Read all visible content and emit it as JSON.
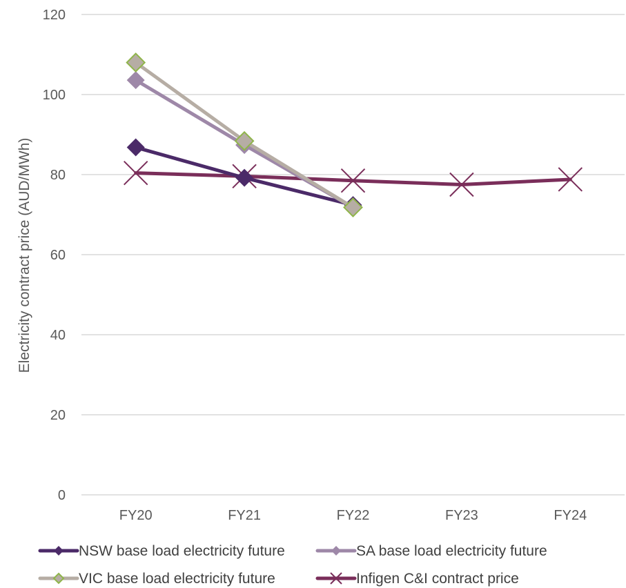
{
  "chart_data": {
    "type": "line",
    "title": "",
    "xlabel": "",
    "ylabel": "Electricity contract price (AUD/MWh)",
    "categories": [
      "FY20",
      "FY21",
      "FY22",
      "FY23",
      "FY24"
    ],
    "ylim": [
      0,
      120
    ],
    "yticks": [
      0,
      20,
      40,
      60,
      80,
      100,
      120
    ],
    "grid": true,
    "legend_position": "bottom",
    "series": [
      {
        "name": "NSW base load electricity future",
        "values": [
          86.8,
          79.2,
          72.4,
          null,
          null
        ],
        "color": "#4b2a68",
        "marker": "diamond"
      },
      {
        "name": "SA base load electricity future",
        "values": [
          103.6,
          87.4,
          71.8,
          null,
          null
        ],
        "color": "#9e88a8",
        "marker": "diamond"
      },
      {
        "name": "VIC base load electricity future",
        "values": [
          108.0,
          88.4,
          71.8,
          null,
          null
        ],
        "color": "#b6ada4",
        "marker": "diamond",
        "marker_edge": "#8fb54a"
      },
      {
        "name": "Infigen C&I contract price",
        "values": [
          80.4,
          79.6,
          78.5,
          77.5,
          78.8
        ],
        "color": "#7a2e5a",
        "marker": "x"
      }
    ]
  }
}
